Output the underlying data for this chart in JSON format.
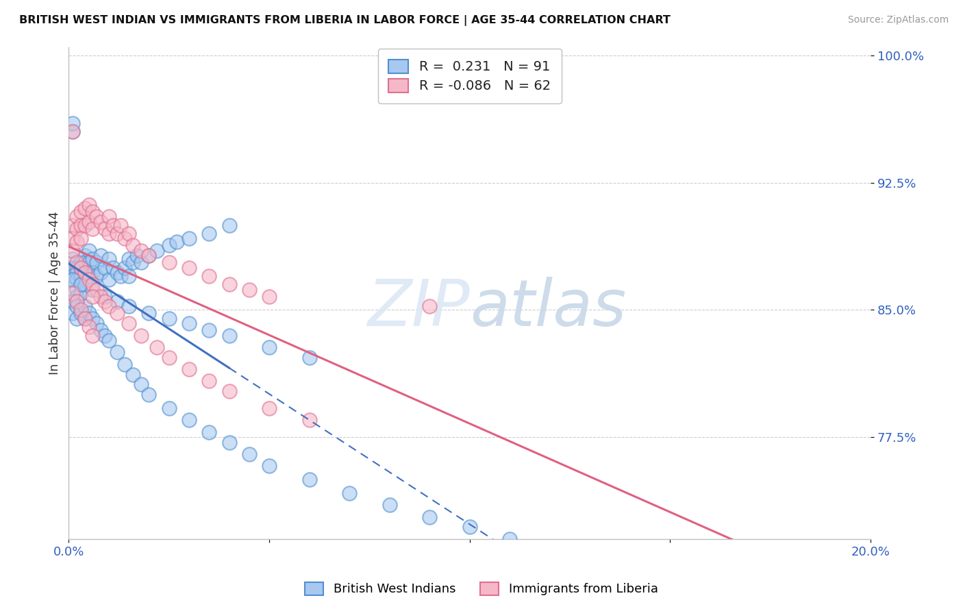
{
  "title": "BRITISH WEST INDIAN VS IMMIGRANTS FROM LIBERIA IN LABOR FORCE | AGE 35-44 CORRELATION CHART",
  "source": "Source: ZipAtlas.com",
  "ylabel": "In Labor Force | Age 35-44",
  "xlim": [
    0.0,
    0.2
  ],
  "ylim": [
    0.715,
    1.005
  ],
  "xticks": [
    0.0,
    0.05,
    0.1,
    0.15,
    0.2
  ],
  "xticklabels": [
    "0.0%",
    "",
    "",
    "",
    "20.0%"
  ],
  "yticks": [
    0.775,
    0.85,
    0.925,
    1.0
  ],
  "yticklabels": [
    "77.5%",
    "85.0%",
    "92.5%",
    "100.0%"
  ],
  "blue_R": 0.231,
  "blue_N": 91,
  "pink_R": -0.086,
  "pink_N": 62,
  "blue_color": "#A8C8F0",
  "pink_color": "#F5B8C8",
  "blue_edge_color": "#5090D0",
  "pink_edge_color": "#E07090",
  "blue_line_color": "#4070C0",
  "pink_line_color": "#E06080",
  "legend_label_blue": "British West Indians",
  "legend_label_pink": "Immigrants from Liberia",
  "blue_x": [
    0.001,
    0.001,
    0.001,
    0.001,
    0.001,
    0.002,
    0.002,
    0.002,
    0.002,
    0.002,
    0.002,
    0.003,
    0.003,
    0.003,
    0.003,
    0.003,
    0.004,
    0.004,
    0.004,
    0.004,
    0.005,
    0.005,
    0.005,
    0.006,
    0.006,
    0.007,
    0.007,
    0.008,
    0.008,
    0.009,
    0.01,
    0.01,
    0.011,
    0.012,
    0.013,
    0.014,
    0.015,
    0.015,
    0.016,
    0.017,
    0.018,
    0.02,
    0.022,
    0.025,
    0.027,
    0.03,
    0.035,
    0.04,
    0.001,
    0.001,
    0.002,
    0.002,
    0.003,
    0.004,
    0.004,
    0.005,
    0.006,
    0.007,
    0.008,
    0.009,
    0.01,
    0.012,
    0.014,
    0.016,
    0.018,
    0.02,
    0.025,
    0.03,
    0.035,
    0.04,
    0.045,
    0.05,
    0.06,
    0.07,
    0.08,
    0.09,
    0.1,
    0.11,
    0.001,
    0.003,
    0.006,
    0.009,
    0.012,
    0.015,
    0.02,
    0.025,
    0.03,
    0.035,
    0.04,
    0.05,
    0.06
  ],
  "blue_y": [
    0.88,
    0.875,
    0.87,
    0.955,
    0.96,
    0.875,
    0.872,
    0.868,
    0.862,
    0.858,
    0.855,
    0.878,
    0.875,
    0.87,
    0.865,
    0.86,
    0.882,
    0.878,
    0.872,
    0.865,
    0.885,
    0.878,
    0.87,
    0.88,
    0.872,
    0.878,
    0.87,
    0.882,
    0.872,
    0.875,
    0.88,
    0.868,
    0.875,
    0.872,
    0.87,
    0.875,
    0.88,
    0.87,
    0.878,
    0.882,
    0.878,
    0.882,
    0.885,
    0.888,
    0.89,
    0.892,
    0.895,
    0.9,
    0.855,
    0.848,
    0.852,
    0.845,
    0.848,
    0.852,
    0.845,
    0.848,
    0.845,
    0.842,
    0.838,
    0.835,
    0.832,
    0.825,
    0.818,
    0.812,
    0.806,
    0.8,
    0.792,
    0.785,
    0.778,
    0.772,
    0.765,
    0.758,
    0.75,
    0.742,
    0.735,
    0.728,
    0.722,
    0.715,
    0.868,
    0.865,
    0.862,
    0.858,
    0.855,
    0.852,
    0.848,
    0.845,
    0.842,
    0.838,
    0.835,
    0.828,
    0.822
  ],
  "pink_x": [
    0.001,
    0.001,
    0.001,
    0.002,
    0.002,
    0.002,
    0.003,
    0.003,
    0.003,
    0.004,
    0.004,
    0.005,
    0.005,
    0.006,
    0.006,
    0.007,
    0.008,
    0.009,
    0.01,
    0.01,
    0.011,
    0.012,
    0.013,
    0.014,
    0.015,
    0.016,
    0.018,
    0.02,
    0.025,
    0.03,
    0.035,
    0.04,
    0.045,
    0.05,
    0.002,
    0.003,
    0.004,
    0.005,
    0.006,
    0.007,
    0.008,
    0.009,
    0.01,
    0.012,
    0.015,
    0.018,
    0.022,
    0.025,
    0.03,
    0.035,
    0.04,
    0.05,
    0.06,
    0.001,
    0.002,
    0.003,
    0.004,
    0.005,
    0.006,
    0.001,
    0.006,
    0.09
  ],
  "pink_y": [
    0.9,
    0.892,
    0.885,
    0.905,
    0.898,
    0.89,
    0.908,
    0.9,
    0.892,
    0.91,
    0.9,
    0.912,
    0.902,
    0.908,
    0.898,
    0.905,
    0.902,
    0.898,
    0.905,
    0.895,
    0.9,
    0.895,
    0.9,
    0.892,
    0.895,
    0.888,
    0.885,
    0.882,
    0.878,
    0.875,
    0.87,
    0.865,
    0.862,
    0.858,
    0.878,
    0.875,
    0.872,
    0.868,
    0.865,
    0.862,
    0.858,
    0.855,
    0.852,
    0.848,
    0.842,
    0.835,
    0.828,
    0.822,
    0.815,
    0.808,
    0.802,
    0.792,
    0.785,
    0.86,
    0.855,
    0.85,
    0.845,
    0.84,
    0.835,
    0.955,
    0.858,
    0.852
  ]
}
